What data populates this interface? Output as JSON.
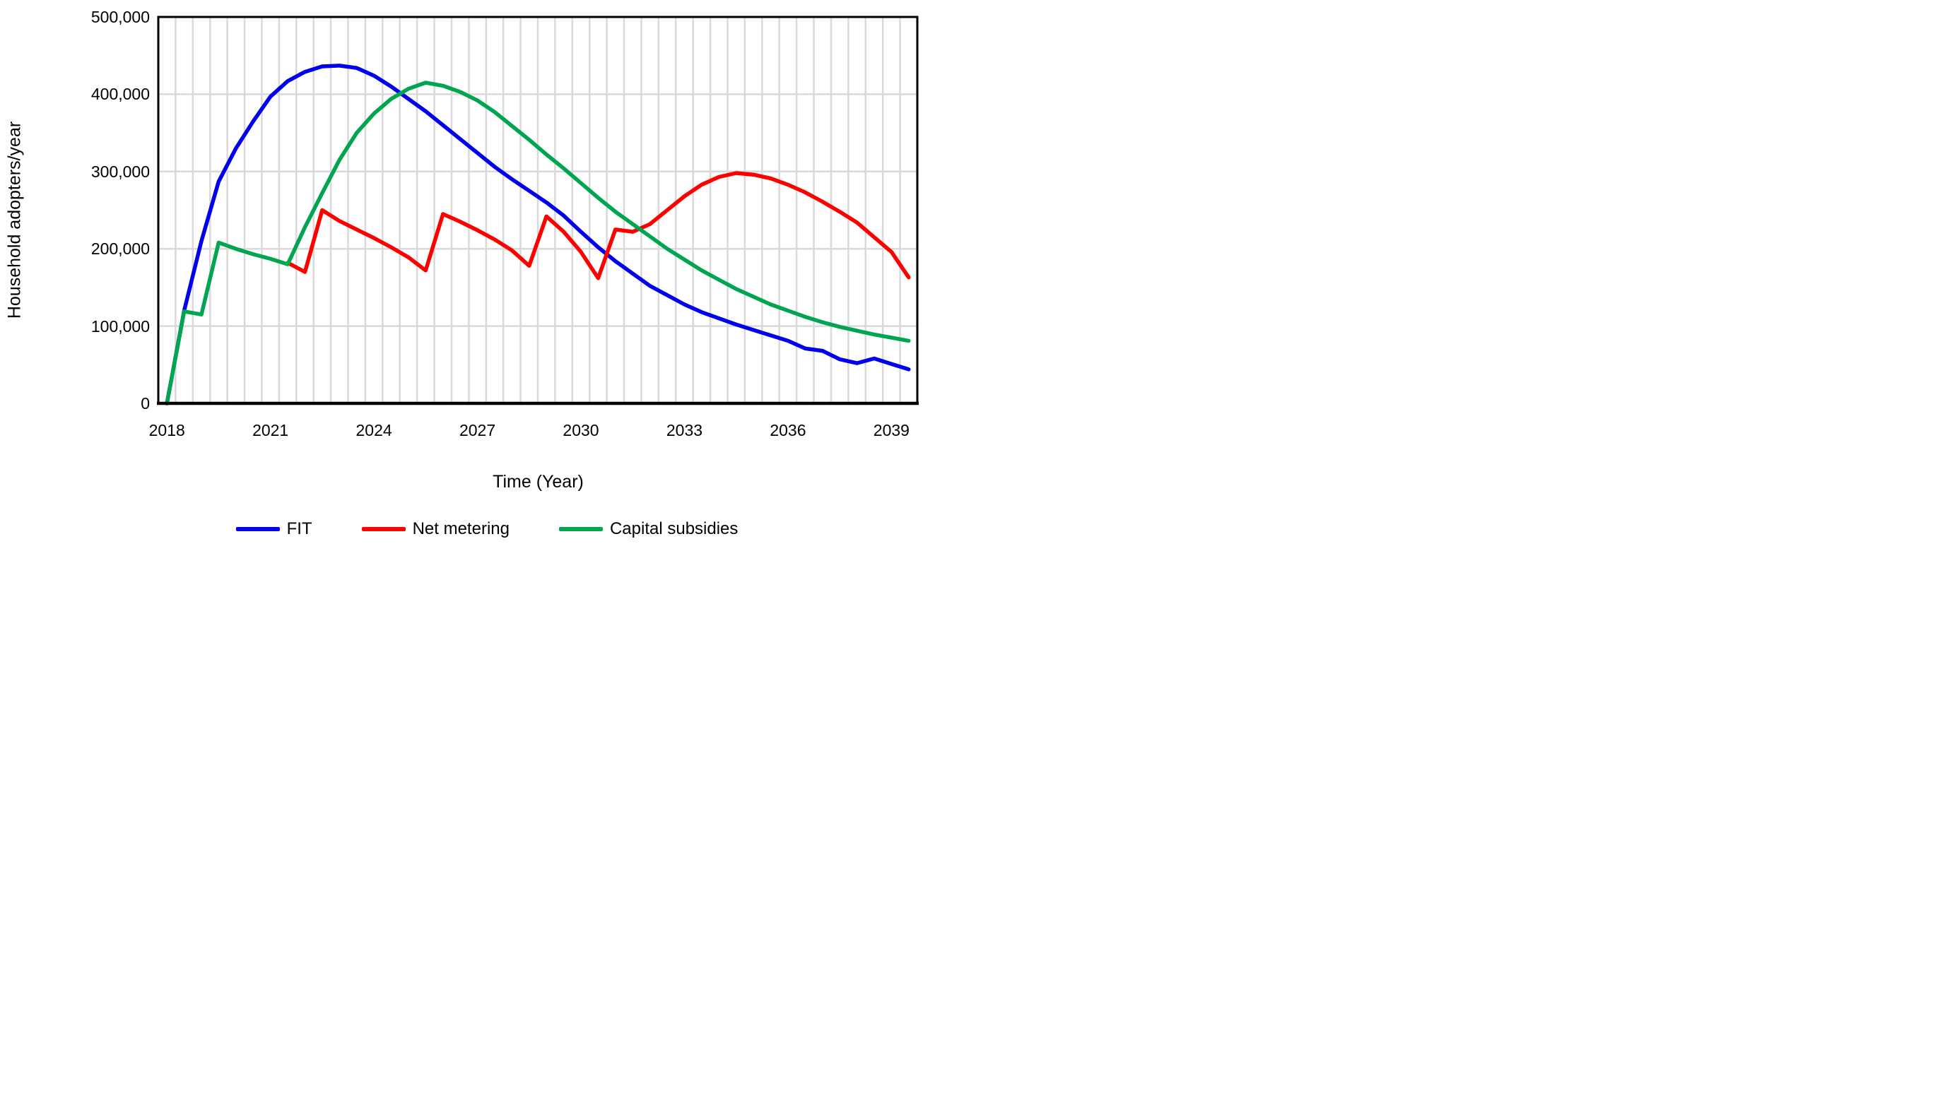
{
  "chart_data": {
    "type": "line",
    "title": "",
    "xlabel": "Time (Year)",
    "ylabel": "Household adopters/year",
    "x_range": [
      2018,
      2039.5
    ],
    "x_step": 0.5,
    "ylim": [
      0,
      500000
    ],
    "y_gridline_step": 100000,
    "grid": true,
    "grid_color": "#d9d9d9",
    "frame_color": "#000000",
    "background_color": "#ffffff",
    "legend_position": "bottom",
    "x_tick_labels": [
      "2018",
      "2021",
      "2024",
      "2027",
      "2030",
      "2033",
      "2036",
      "2039"
    ],
    "x_tick_values": [
      2018,
      2021,
      2024,
      2027,
      2030,
      2033,
      2036,
      2039
    ],
    "y_tick_labels": [
      "0",
      "100,000",
      "200,000",
      "300,000",
      "400,000",
      "500,000"
    ],
    "y_tick_values": [
      0,
      100000,
      200000,
      300000,
      400000,
      500000
    ],
    "series": [
      {
        "name": "FIT",
        "color": "#0000ee",
        "points": [
          [
            2018.0,
            0
          ],
          [
            2018.5,
            120000
          ],
          [
            2019.0,
            210000
          ],
          [
            2019.5,
            287000
          ],
          [
            2020.0,
            330000
          ],
          [
            2020.5,
            365000
          ],
          [
            2021.0,
            397000
          ],
          [
            2021.5,
            417000
          ],
          [
            2022.0,
            429000
          ],
          [
            2022.5,
            436000
          ],
          [
            2023.0,
            437000
          ],
          [
            2023.5,
            434000
          ],
          [
            2024.0,
            424000
          ],
          [
            2024.5,
            410000
          ],
          [
            2025.0,
            394000
          ],
          [
            2025.5,
            378000
          ],
          [
            2026.0,
            360000
          ],
          [
            2026.5,
            342000
          ],
          [
            2027.0,
            324000
          ],
          [
            2027.5,
            306000
          ],
          [
            2028.0,
            290000
          ],
          [
            2028.5,
            275000
          ],
          [
            2029.0,
            260000
          ],
          [
            2029.5,
            243000
          ],
          [
            2030.0,
            222000
          ],
          [
            2030.5,
            202000
          ],
          [
            2031.0,
            184000
          ],
          [
            2031.5,
            168000
          ],
          [
            2032.0,
            152000
          ],
          [
            2032.5,
            140000
          ],
          [
            2033.0,
            128000
          ],
          [
            2033.5,
            118000
          ],
          [
            2034.0,
            110000
          ],
          [
            2034.5,
            102000
          ],
          [
            2035.0,
            95000
          ],
          [
            2035.5,
            88000
          ],
          [
            2036.0,
            81000
          ],
          [
            2036.5,
            71000
          ],
          [
            2037.0,
            68000
          ],
          [
            2037.5,
            57000
          ],
          [
            2038.0,
            52000
          ],
          [
            2038.5,
            58000
          ],
          [
            2039.0,
            51000
          ],
          [
            2039.5,
            44000
          ]
        ]
      },
      {
        "name": "Net metering",
        "color": "#fe0000",
        "points": [
          [
            2021.5,
            182000
          ],
          [
            2022.0,
            170000
          ],
          [
            2022.5,
            250000
          ],
          [
            2023.0,
            236000
          ],
          [
            2023.5,
            225000
          ],
          [
            2024.0,
            214000
          ],
          [
            2024.5,
            202000
          ],
          [
            2025.0,
            189000
          ],
          [
            2025.5,
            172000
          ],
          [
            2026.0,
            245000
          ],
          [
            2026.5,
            235000
          ],
          [
            2027.0,
            224000
          ],
          [
            2027.5,
            212000
          ],
          [
            2028.0,
            198000
          ],
          [
            2028.5,
            178000
          ],
          [
            2029.0,
            242000
          ],
          [
            2029.5,
            222000
          ],
          [
            2030.0,
            196000
          ],
          [
            2030.5,
            162000
          ],
          [
            2031.0,
            225000
          ],
          [
            2031.5,
            222000
          ],
          [
            2032.0,
            232000
          ],
          [
            2032.5,
            250000
          ],
          [
            2033.0,
            268000
          ],
          [
            2033.5,
            283000
          ],
          [
            2034.0,
            293000
          ],
          [
            2034.5,
            298000
          ],
          [
            2035.0,
            296000
          ],
          [
            2035.5,
            291000
          ],
          [
            2036.0,
            283000
          ],
          [
            2036.5,
            273000
          ],
          [
            2037.0,
            261000
          ],
          [
            2037.5,
            248000
          ],
          [
            2038.0,
            234000
          ],
          [
            2038.5,
            215000
          ],
          [
            2039.0,
            196000
          ],
          [
            2039.5,
            163000
          ]
        ]
      },
      {
        "name": "Capital subsidies",
        "color": "#00a550",
        "points": [
          [
            2018.0,
            0
          ],
          [
            2018.5,
            119000
          ],
          [
            2019.0,
            115000
          ],
          [
            2019.5,
            208000
          ],
          [
            2020.0,
            200000
          ],
          [
            2020.5,
            193000
          ],
          [
            2021.0,
            187000
          ],
          [
            2021.5,
            180000
          ],
          [
            2022.0,
            228000
          ],
          [
            2022.5,
            272000
          ],
          [
            2023.0,
            315000
          ],
          [
            2023.5,
            350000
          ],
          [
            2024.0,
            375000
          ],
          [
            2024.5,
            394000
          ],
          [
            2025.0,
            407000
          ],
          [
            2025.5,
            415000
          ],
          [
            2026.0,
            411000
          ],
          [
            2026.5,
            403000
          ],
          [
            2027.0,
            392000
          ],
          [
            2027.5,
            377000
          ],
          [
            2028.0,
            359000
          ],
          [
            2028.5,
            341000
          ],
          [
            2029.0,
            322000
          ],
          [
            2029.5,
            304000
          ],
          [
            2030.0,
            285000
          ],
          [
            2030.5,
            266000
          ],
          [
            2031.0,
            248000
          ],
          [
            2031.5,
            232000
          ],
          [
            2032.0,
            216000
          ],
          [
            2032.5,
            200000
          ],
          [
            2033.0,
            186000
          ],
          [
            2033.5,
            172000
          ],
          [
            2034.0,
            160000
          ],
          [
            2034.5,
            148000
          ],
          [
            2035.0,
            138000
          ],
          [
            2035.5,
            128000
          ],
          [
            2036.0,
            120000
          ],
          [
            2036.5,
            112000
          ],
          [
            2037.0,
            105000
          ],
          [
            2037.5,
            99000
          ],
          [
            2038.0,
            94000
          ],
          [
            2038.5,
            89000
          ],
          [
            2039.0,
            85000
          ],
          [
            2039.5,
            81000
          ]
        ]
      }
    ]
  }
}
